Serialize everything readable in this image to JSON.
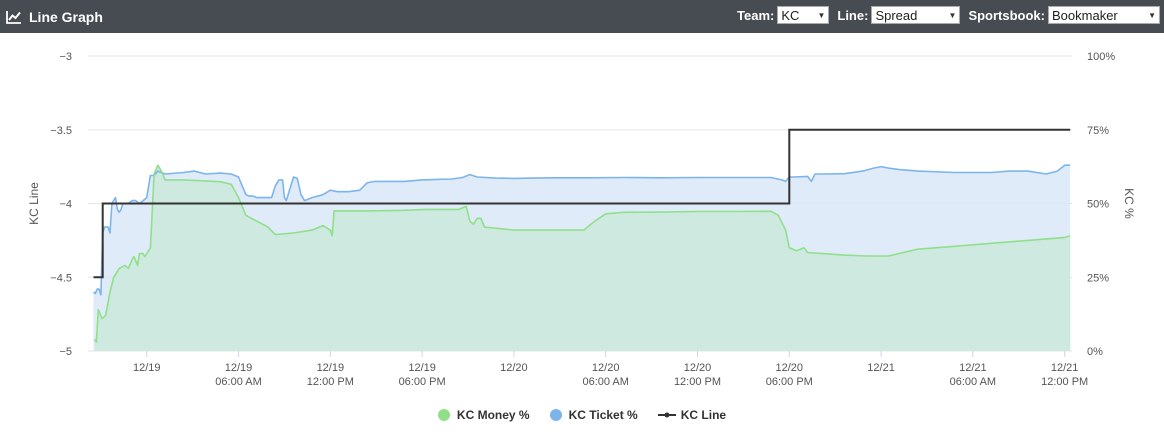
{
  "header": {
    "title": "Line Graph",
    "icon": "line-chart-icon",
    "team_label": "Team:",
    "team_value": "KC",
    "line_label": "Line:",
    "line_value": "Spread",
    "sportsbook_label": "Sportsbook:",
    "sportsbook_value": "Bookmaker"
  },
  "colors": {
    "header_bg": "#474b52",
    "money": "#90e08a",
    "money_fill": "#cde9e0",
    "ticket": "#7cb5ec",
    "ticket_fill": "#dbe8f8",
    "line": "#333333"
  },
  "chart_data": {
    "type": "line",
    "x_axis": {
      "ticks": [
        {
          "day": 0.0,
          "date": "12/19",
          "time": ""
        },
        {
          "day": 0.25,
          "date": "12/19",
          "time": "06:00 AM"
        },
        {
          "day": 0.5,
          "date": "12/19",
          "time": "12:00 PM"
        },
        {
          "day": 0.75,
          "date": "12/19",
          "time": "06:00 PM"
        },
        {
          "day": 1.0,
          "date": "12/20",
          "time": ""
        },
        {
          "day": 1.25,
          "date": "12/20",
          "time": "06:00 AM"
        },
        {
          "day": 1.5,
          "date": "12/20",
          "time": "12:00 PM"
        },
        {
          "day": 1.75,
          "date": "12/20",
          "time": "06:00 PM"
        },
        {
          "day": 2.0,
          "date": "12/21",
          "time": ""
        },
        {
          "day": 2.25,
          "date": "12/21",
          "time": "06:00 AM"
        },
        {
          "day": 2.5,
          "date": "12/21",
          "time": "12:00 PM"
        }
      ],
      "range_days": [
        -0.16,
        2.52
      ]
    },
    "y_left": {
      "label": "KC Line",
      "min": -5,
      "max": -3,
      "tick_values": [
        -3,
        -3.5,
        -4,
        -4.5,
        -5
      ],
      "tick_labels": [
        "−3",
        "−3.5",
        "−4",
        "−4.5",
        "−5"
      ]
    },
    "y_right": {
      "label": "KC %",
      "min": 0,
      "max": 100,
      "tick_values": [
        100,
        75,
        50,
        25,
        0
      ],
      "tick_labels": [
        "100%",
        "75%",
        "50%",
        "25%",
        "0%"
      ]
    },
    "grid": true,
    "legend": "bottom-center",
    "series": [
      {
        "name": "KC Money %",
        "axis": "right",
        "type": "area",
        "points": [
          [
            -0.142,
            4
          ],
          [
            -0.137,
            3
          ],
          [
            -0.132,
            14
          ],
          [
            -0.122,
            11
          ],
          [
            -0.112,
            12
          ],
          [
            -0.1,
            20
          ],
          [
            -0.09,
            25
          ],
          [
            -0.075,
            28
          ],
          [
            -0.06,
            29
          ],
          [
            -0.05,
            28
          ],
          [
            -0.04,
            31
          ],
          [
            -0.035,
            32
          ],
          [
            -0.025,
            29
          ],
          [
            -0.02,
            33
          ],
          [
            -0.01,
            33
          ],
          [
            -0.005,
            32
          ],
          [
            0.0,
            33
          ],
          [
            0.01,
            35
          ],
          [
            0.02,
            60
          ],
          [
            0.03,
            63
          ],
          [
            0.04,
            61
          ],
          [
            0.05,
            58
          ],
          [
            0.07,
            58
          ],
          [
            0.1,
            58
          ],
          [
            0.15,
            57.7
          ],
          [
            0.2,
            57.4
          ],
          [
            0.23,
            56.5
          ],
          [
            0.25,
            52
          ],
          [
            0.27,
            46
          ],
          [
            0.3,
            44
          ],
          [
            0.33,
            42
          ],
          [
            0.35,
            39.5
          ],
          [
            0.4,
            40
          ],
          [
            0.45,
            41
          ],
          [
            0.48,
            42.5
          ],
          [
            0.5,
            41
          ],
          [
            0.505,
            39
          ],
          [
            0.51,
            47.5
          ],
          [
            0.6,
            47.5
          ],
          [
            0.7,
            47.7
          ],
          [
            0.76,
            48
          ],
          [
            0.85,
            48
          ],
          [
            0.87,
            49
          ],
          [
            0.88,
            44
          ],
          [
            0.89,
            43
          ],
          [
            0.9,
            45
          ],
          [
            0.91,
            45
          ],
          [
            0.92,
            42
          ],
          [
            1.0,
            41
          ],
          [
            1.05,
            41
          ],
          [
            1.15,
            41
          ],
          [
            1.19,
            41
          ],
          [
            1.22,
            44
          ],
          [
            1.25,
            46.5
          ],
          [
            1.3,
            47
          ],
          [
            1.4,
            47.1
          ],
          [
            1.5,
            47.3
          ],
          [
            1.6,
            47.3
          ],
          [
            1.7,
            47.4
          ],
          [
            1.72,
            46
          ],
          [
            1.74,
            41
          ],
          [
            1.75,
            35
          ],
          [
            1.77,
            34
          ],
          [
            1.79,
            35
          ],
          [
            1.8,
            33.4
          ],
          [
            1.9,
            32.5
          ],
          [
            1.96,
            32.2
          ],
          [
            2.02,
            32.2
          ],
          [
            2.1,
            34.5
          ],
          [
            2.2,
            35.5
          ],
          [
            2.3,
            36.5
          ],
          [
            2.4,
            37.5
          ],
          [
            2.5,
            38.5
          ],
          [
            2.515,
            39
          ]
        ]
      },
      {
        "name": "KC Ticket %",
        "axis": "right",
        "type": "area",
        "points": [
          [
            -0.145,
            20
          ],
          [
            -0.14,
            19.5
          ],
          [
            -0.135,
            21
          ],
          [
            -0.13,
            21
          ],
          [
            -0.125,
            19
          ],
          [
            -0.12,
            40
          ],
          [
            -0.115,
            42
          ],
          [
            -0.105,
            42
          ],
          [
            -0.1,
            40
          ],
          [
            -0.095,
            50
          ],
          [
            -0.085,
            52
          ],
          [
            -0.08,
            48
          ],
          [
            -0.075,
            47
          ],
          [
            -0.07,
            48
          ],
          [
            -0.065,
            50
          ],
          [
            -0.05,
            50
          ],
          [
            -0.04,
            51
          ],
          [
            -0.03,
            51
          ],
          [
            -0.02,
            50
          ],
          [
            -0.01,
            51
          ],
          [
            0.0,
            52
          ],
          [
            0.01,
            59.5
          ],
          [
            0.02,
            59.5
          ],
          [
            0.03,
            61
          ],
          [
            0.05,
            60
          ],
          [
            0.1,
            60.5
          ],
          [
            0.13,
            61
          ],
          [
            0.16,
            60
          ],
          [
            0.2,
            60.3
          ],
          [
            0.23,
            60
          ],
          [
            0.25,
            59
          ],
          [
            0.26,
            56
          ],
          [
            0.27,
            53
          ],
          [
            0.28,
            52.5
          ],
          [
            0.29,
            52.5
          ],
          [
            0.3,
            52
          ],
          [
            0.32,
            52
          ],
          [
            0.34,
            52
          ],
          [
            0.35,
            56
          ],
          [
            0.36,
            58
          ],
          [
            0.37,
            58
          ],
          [
            0.375,
            52
          ],
          [
            0.38,
            51
          ],
          [
            0.39,
            55
          ],
          [
            0.4,
            59
          ],
          [
            0.41,
            58.5
          ],
          [
            0.42,
            53
          ],
          [
            0.43,
            51
          ],
          [
            0.45,
            52
          ],
          [
            0.48,
            53
          ],
          [
            0.5,
            54.5
          ],
          [
            0.52,
            54
          ],
          [
            0.55,
            54
          ],
          [
            0.58,
            54.5
          ],
          [
            0.6,
            57
          ],
          [
            0.62,
            57.5
          ],
          [
            0.65,
            57.5
          ],
          [
            0.7,
            57.5
          ],
          [
            0.75,
            58
          ],
          [
            0.8,
            58.2
          ],
          [
            0.83,
            58.3
          ],
          [
            0.86,
            58.8
          ],
          [
            0.88,
            59.8
          ],
          [
            0.9,
            59
          ],
          [
            0.95,
            58.6
          ],
          [
            1.0,
            58.5
          ],
          [
            1.05,
            58.6
          ],
          [
            1.1,
            58.7
          ],
          [
            1.2,
            58.7
          ],
          [
            1.3,
            58.8
          ],
          [
            1.4,
            58.7
          ],
          [
            1.5,
            58.8
          ],
          [
            1.6,
            58.8
          ],
          [
            1.7,
            58.8
          ],
          [
            1.73,
            58
          ],
          [
            1.74,
            57.5
          ],
          [
            1.75,
            59
          ],
          [
            1.76,
            59
          ],
          [
            1.8,
            59.2
          ],
          [
            1.81,
            57.5
          ],
          [
            1.82,
            60
          ],
          [
            1.85,
            60
          ],
          [
            1.9,
            60.1
          ],
          [
            1.95,
            61
          ],
          [
            1.98,
            62
          ],
          [
            2.0,
            62.5
          ],
          [
            2.02,
            62
          ],
          [
            2.05,
            61.5
          ],
          [
            2.1,
            61
          ],
          [
            2.2,
            60.5
          ],
          [
            2.3,
            60.5
          ],
          [
            2.35,
            61
          ],
          [
            2.4,
            61
          ],
          [
            2.45,
            60
          ],
          [
            2.48,
            61
          ],
          [
            2.5,
            63
          ],
          [
            2.515,
            63
          ]
        ]
      },
      {
        "name": "KC Line",
        "axis": "left",
        "type": "step",
        "points": [
          [
            -0.145,
            -4.5
          ],
          [
            -0.12,
            -4.5
          ],
          [
            -0.12,
            -4
          ],
          [
            1.75,
            -4
          ],
          [
            1.75,
            -3.5
          ],
          [
            2.515,
            -3.5
          ]
        ]
      }
    ]
  }
}
